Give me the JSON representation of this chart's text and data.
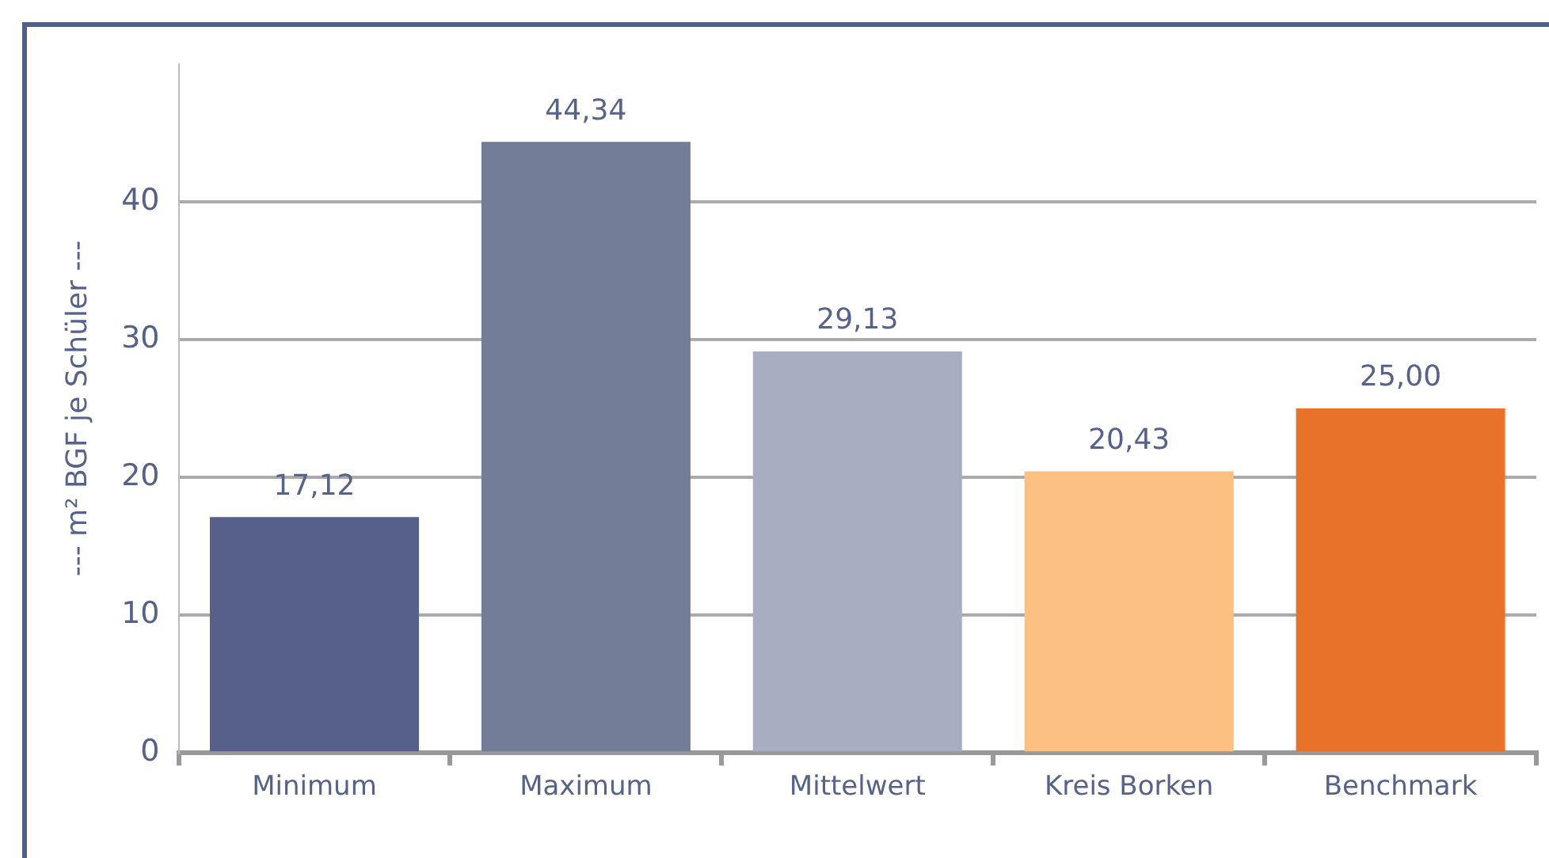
{
  "chart_data": {
    "type": "bar",
    "ylabel": "--- m² BGF je Schüler ---",
    "categories": [
      "Minimum",
      "Maximum",
      "Mittelwert",
      "Kreis Borken",
      "Benchmark"
    ],
    "values": [
      17.12,
      44.34,
      29.13,
      20.43,
      25.0
    ],
    "value_labels": [
      "17,12",
      "44,34",
      "29,13",
      "20,43",
      "25,00"
    ],
    "colors": [
      "#56608a",
      "#747d97",
      "#a9adc2",
      "#fcc083",
      "#e8722a"
    ],
    "ylim": [
      0,
      50
    ],
    "yticks": [
      0,
      10,
      20,
      30,
      40
    ],
    "grid": "y",
    "legend": false
  }
}
